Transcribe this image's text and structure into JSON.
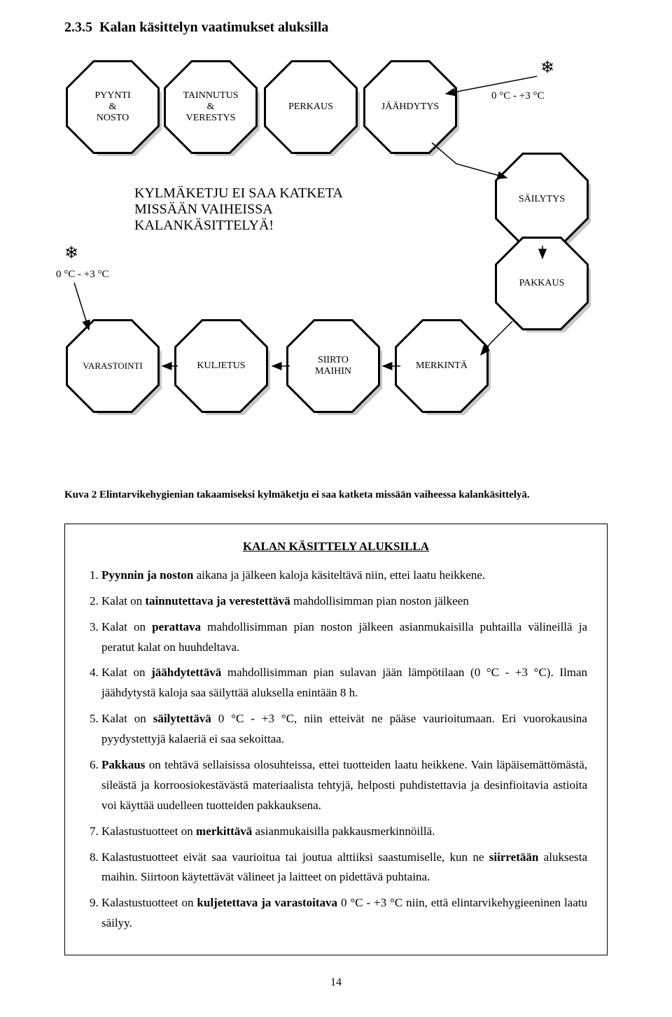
{
  "section_number": "2.3.5",
  "section_title": "Kalan käsittelyn vaatimukset aluksilla",
  "diagram": {
    "nodes": {
      "pyynti": {
        "label": "PYYNTI\n&\nNOSTO"
      },
      "tainnutus": {
        "label": "TAINNUTUS\n&\nVERESTYS"
      },
      "perkaus": {
        "label": "PERKAUS"
      },
      "jaahdytys": {
        "label": "JÄÄHDYTYS"
      },
      "sailytys": {
        "label": "SÄILYTYS"
      },
      "pakkaus": {
        "label": "PAKKAUS"
      },
      "varastointi": {
        "label": "VARASTOINTI"
      },
      "kuljetus": {
        "label": "KULJETUS"
      },
      "siirto": {
        "label": "SIIRTO\nMAIHIN"
      },
      "merkinta": {
        "label": "MERKINTÄ"
      }
    },
    "cold_chain": {
      "line1": "KYLMÄKETJU EI SAA KATKETA",
      "line2": "MISSÄÄN VAIHEISSA",
      "line3": "KALANKÄSITTELYÄ!"
    },
    "temp_top": "0 °C - +3 °C",
    "temp_left": "0 °C - +3 °C",
    "snowflake": "❄"
  },
  "caption": "Kuva 2 Elintarvikehygienian takaamiseksi kylmäketju ei saa katketa missään vaiheessa kalankäsittelyä.",
  "guidelines": {
    "title": "KALAN KÄSITTELY ALUKSILLA",
    "items": [
      {
        "html": "<b>Pyynnin ja noston</b> aikana ja jälkeen kaloja käsiteltävä niin, ettei laatu heikkene."
      },
      {
        "html": "Kalat on <b>tainnutettava ja verestettävä</b> mahdollisimman pian noston jälkeen"
      },
      {
        "html": "Kalat on <b>perattava</b> mahdollisimman pian noston jälkeen asianmukaisilla puhtailla välineillä ja peratut kalat on huuhdeltava."
      },
      {
        "html": "Kalat on <b>jäähdytettävä</b> mahdollisimman pian sulavan jään lämpötilaan (0 °C - +3 °C). Ilman jäähdytystä kaloja saa säilyttää aluksella enintään 8 h."
      },
      {
        "html": "Kalat on <b>säilytettävä</b> 0 °C - +3 °C, niin etteivät ne pääse vaurioitumaan. Eri vuorokausina pyydystettyjä kalaeriä ei saa sekoittaa."
      },
      {
        "html": "<b>Pakkaus</b> on tehtävä sellaisissa olosuhteissa, ettei tuotteiden laatu heikkene. Vain läpäisemättömästä, sileästä ja korroosiokestävästä materiaalista tehtyjä, helposti puhdistettavia ja desinfioitavia astioita voi käyttää uudelleen tuotteiden pakkauksena."
      },
      {
        "html": "Kalastustuotteet on <b>merkittävä</b> asianmukaisilla pakkausmerkinnöillä."
      },
      {
        "html": "Kalastustuotteet eivät saa vaurioitua tai joutua alttiiksi saastumiselle, kun ne <b>siirretään</b> aluksesta maihin. Siirtoon käytettävät välineet ja laitteet on pidettävä puhtaina."
      },
      {
        "html": "Kalastustuotteet on <b>kuljetettava ja varastoitava</b> 0 °C - +3 °C niin, että elintarvikehygieeninen laatu säilyy."
      }
    ]
  },
  "page_number": "14"
}
